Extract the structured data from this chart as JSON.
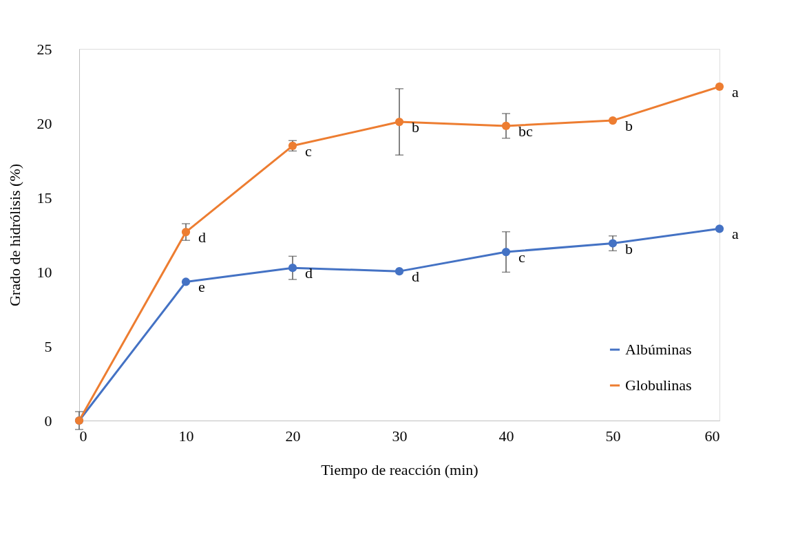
{
  "chart_data": {
    "type": "line",
    "xlabel": "Tiempo de reacción (min)",
    "ylabel": "Grado de hidrólisis (%)",
    "x": [
      0,
      10,
      20,
      30,
      40,
      50,
      60
    ],
    "series": [
      {
        "name": "Albúminas",
        "color": "#4472c4",
        "values": [
          0,
          9.33,
          10.27,
          10.04,
          11.34,
          11.92,
          12.9
        ],
        "errors": [
          null,
          null,
          0.78,
          null,
          1.36,
          0.5,
          null
        ]
      },
      {
        "name": "Globulinas",
        "color": "#ed7d31",
        "values": [
          0,
          12.68,
          18.48,
          20.09,
          19.82,
          20.18,
          22.46
        ],
        "errors": [
          0.6,
          0.56,
          0.35,
          2.23,
          0.83,
          null,
          null
        ]
      }
    ],
    "annotations": [
      {
        "text": "e",
        "x": 10,
        "y": 9.33
      },
      {
        "text": "d",
        "x": 20,
        "y": 10.27
      },
      {
        "text": "d",
        "x": 30,
        "y": 10.04
      },
      {
        "text": "c",
        "x": 40,
        "y": 11.34
      },
      {
        "text": "b",
        "x": 50,
        "y": 11.92
      },
      {
        "text": "a",
        "x": 60,
        "y": 12.9
      },
      {
        "text": "d",
        "x": 10,
        "y": 12.68
      },
      {
        "text": "c",
        "x": 20,
        "y": 18.48
      },
      {
        "text": "b",
        "x": 30,
        "y": 20.09
      },
      {
        "text": "bc",
        "x": 40,
        "y": 19.82
      },
      {
        "text": "b",
        "x": 50,
        "y": 20.18
      },
      {
        "text": "a",
        "x": 60,
        "y": 22.46
      }
    ],
    "xlim": [
      0,
      60
    ],
    "xticks": [
      0,
      10,
      20,
      30,
      40,
      50,
      60
    ],
    "ylim": [
      0,
      25
    ],
    "yticks": [
      0,
      5,
      10,
      15,
      20,
      25
    ],
    "marker": "circle",
    "line_style": "solid",
    "grid": false,
    "legend": "bottom right"
  }
}
